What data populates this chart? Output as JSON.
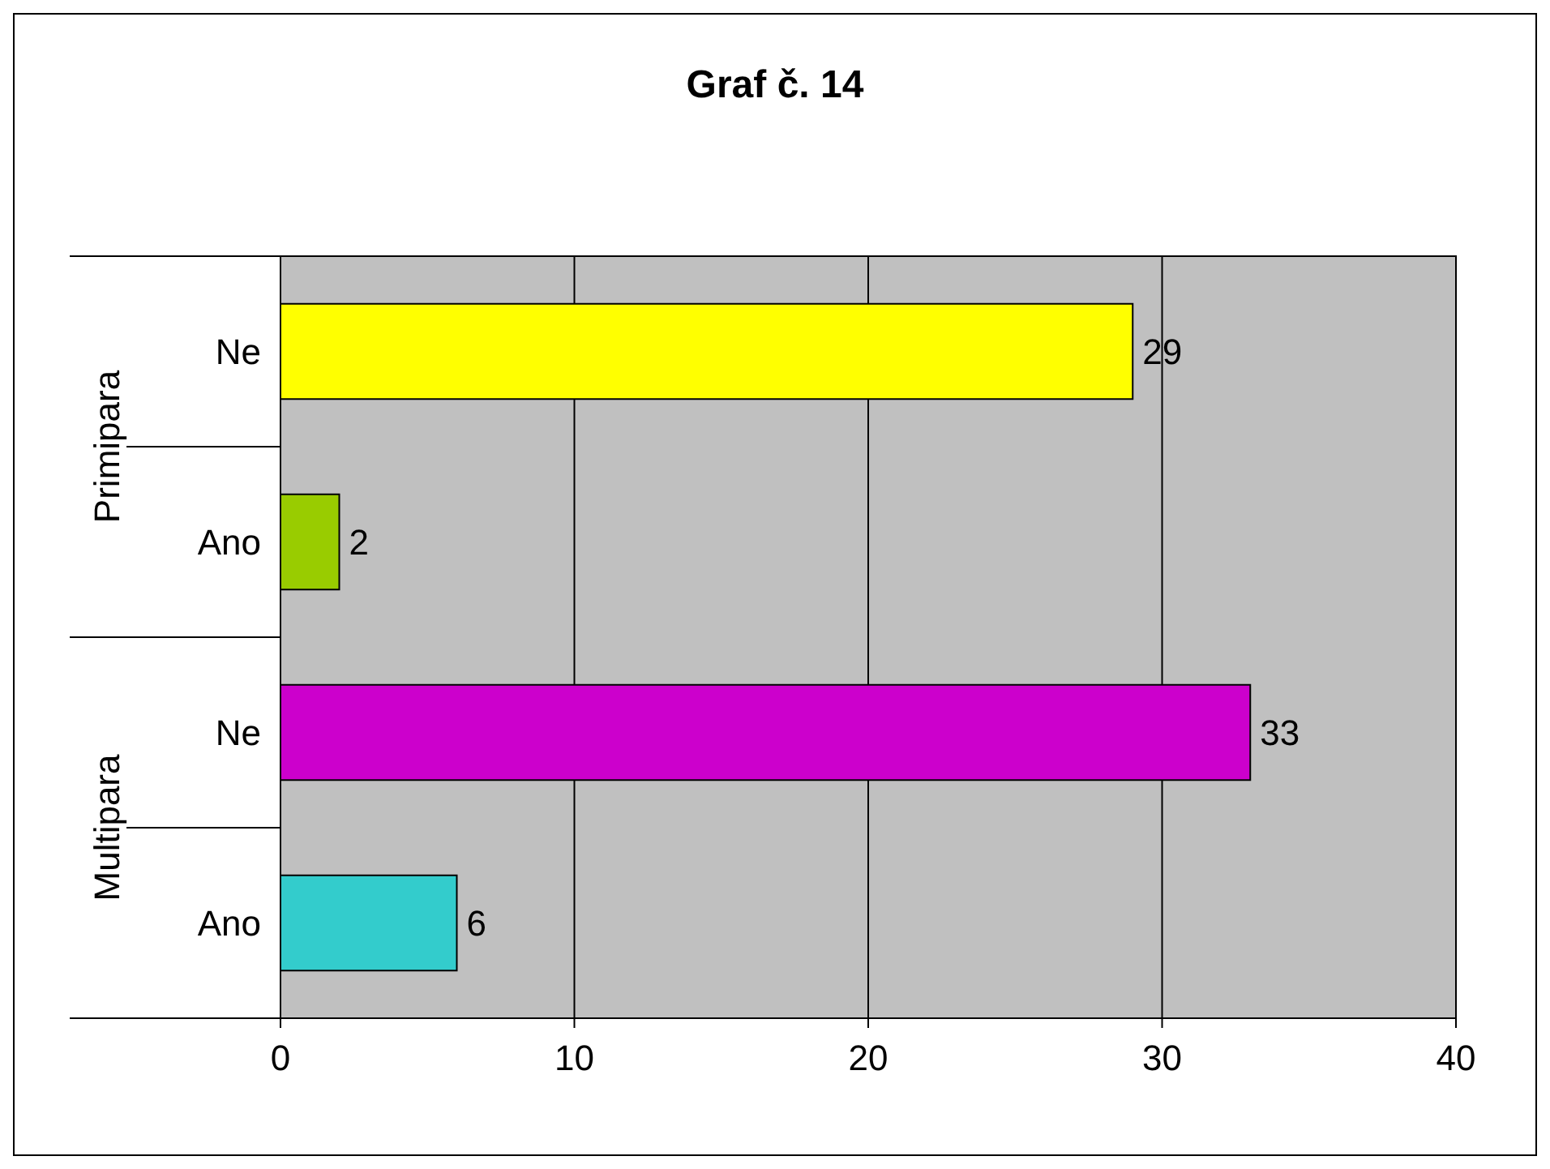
{
  "chart_data": {
    "type": "bar",
    "orientation": "horizontal",
    "title": "Graf č. 14",
    "categories": [
      "Ne",
      "Ano",
      "Ne",
      "Ano"
    ],
    "values": [
      29,
      2,
      33,
      6
    ],
    "colors": [
      "#ffff00",
      "#99cc00",
      "#cc00cc",
      "#33cccc"
    ],
    "xlim": [
      0,
      40
    ],
    "xticks": [
      0,
      10,
      20,
      30,
      40
    ],
    "grid": "x",
    "data_labels": true,
    "annotations": [
      "Primipara",
      "Multipara"
    ]
  }
}
